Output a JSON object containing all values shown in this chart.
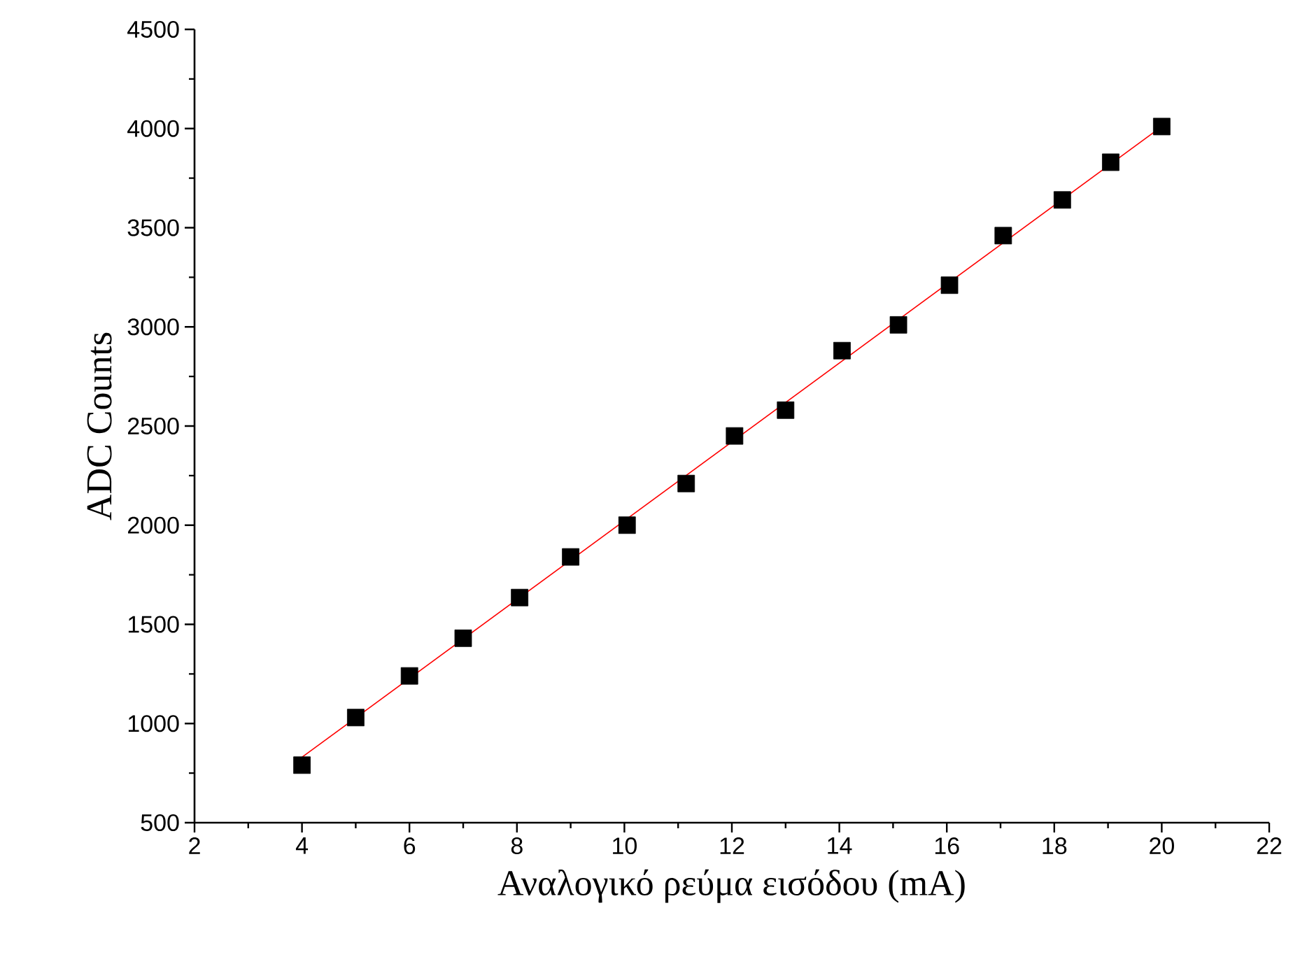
{
  "chart_data": {
    "type": "scatter",
    "xlabel": "Αναλογικό ρεύμα εισόδου   (mA)",
    "ylabel": "ADC Counts",
    "xlim": [
      2,
      22
    ],
    "xticks": [
      2,
      4,
      6,
      8,
      10,
      12,
      14,
      16,
      18,
      20,
      22
    ],
    "ylim": [
      500,
      4500
    ],
    "yticks": [
      500,
      1000,
      1500,
      2000,
      2500,
      3000,
      3500,
      4000,
      4500
    ],
    "series": [
      {
        "marker": "square",
        "color": "#000000",
        "x": [
          4,
          5,
          6,
          7,
          8.05,
          9,
          10.05,
          11.15,
          12.05,
          13,
          14.05,
          15.1,
          16.05,
          17.05,
          18.15,
          19.05,
          20
        ],
        "values": [
          790,
          1030,
          1240,
          1430,
          1635,
          1840,
          2000,
          2210,
          2450,
          2580,
          2880,
          3010,
          3210,
          3460,
          3640,
          3830,
          4010
        ]
      },
      {
        "type": "line",
        "marker": "none",
        "color": "#ff0000",
        "x": [
          4,
          20
        ],
        "values": [
          830,
          4010
        ]
      }
    ]
  }
}
